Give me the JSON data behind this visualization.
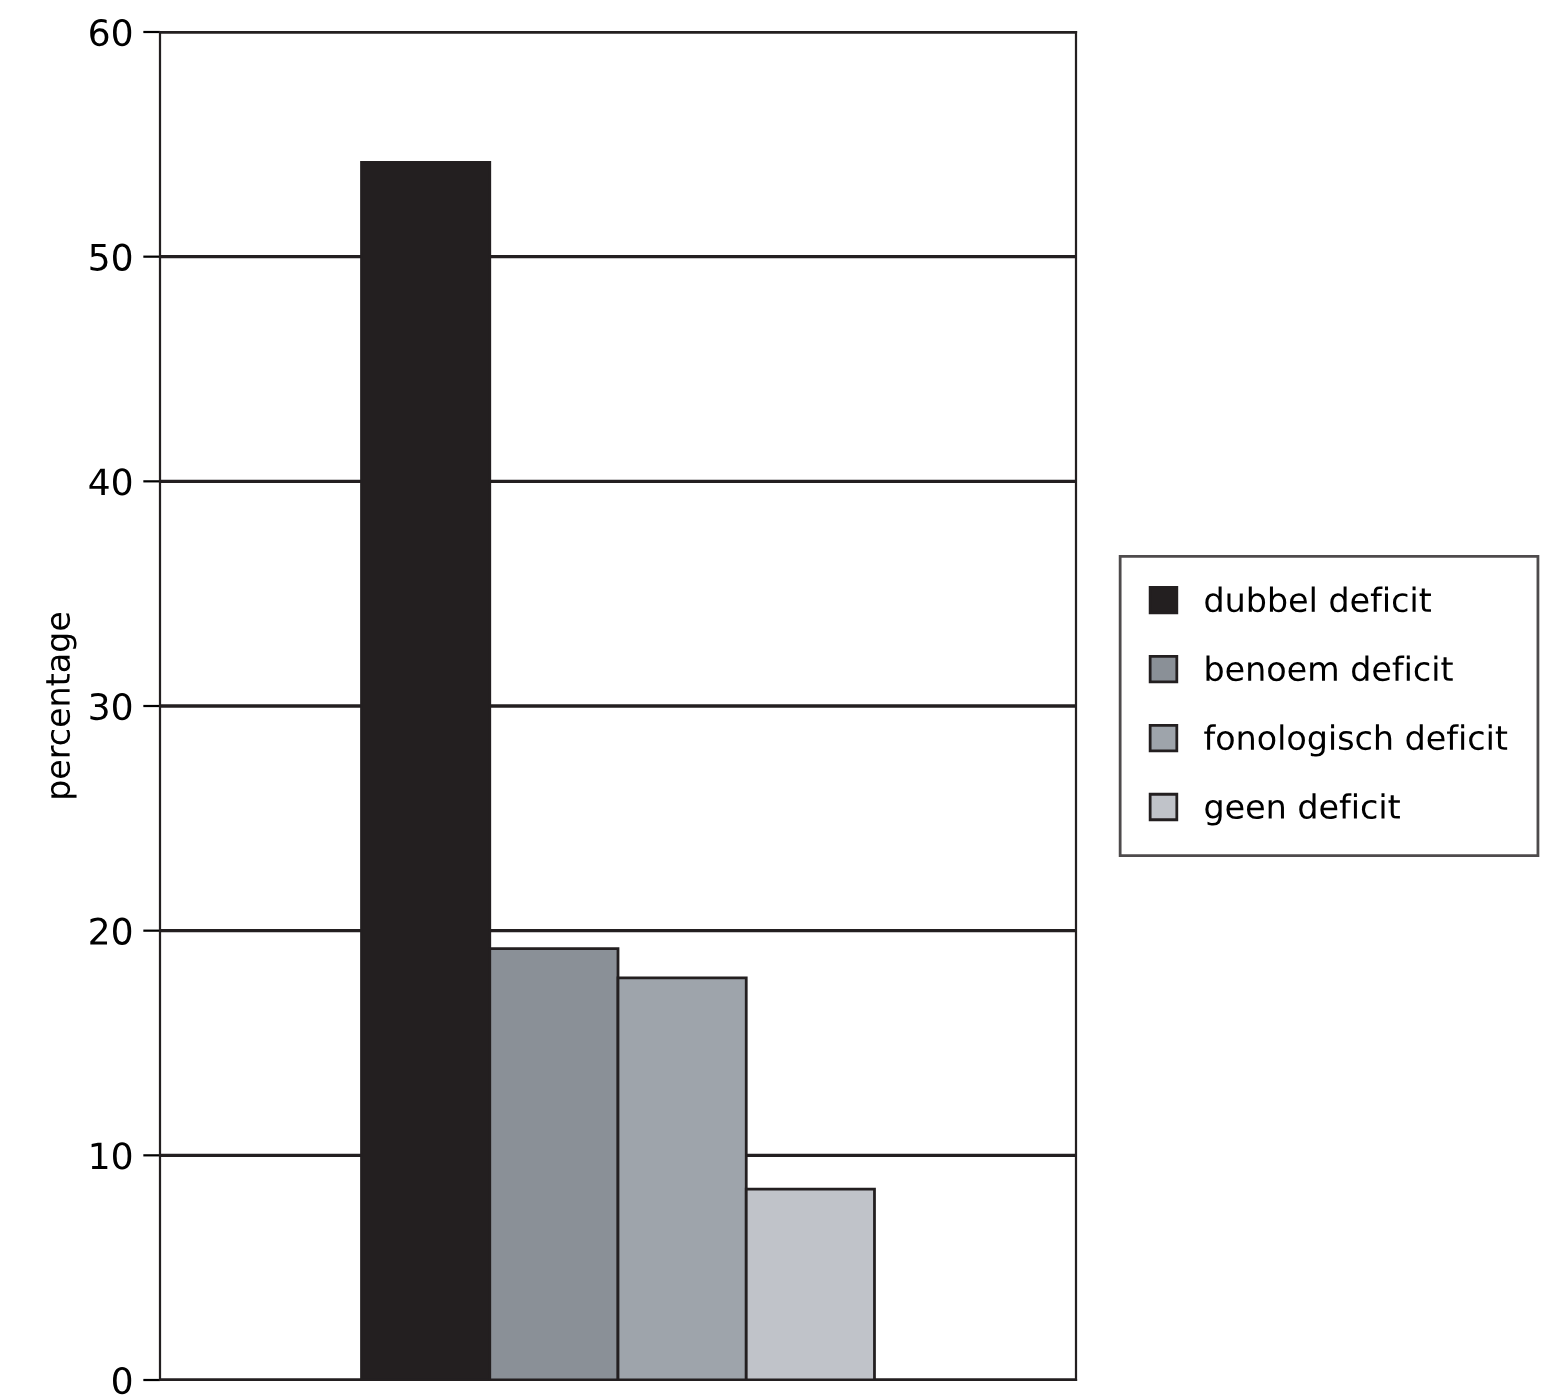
{
  "chart_data": {
    "type": "bar",
    "ylabel": "percentage",
    "categories": [
      null
    ],
    "series": [
      {
        "name": "dubbel deficit",
        "color": "#231f20",
        "values": [
          54.2
        ]
      },
      {
        "name": "benoem deficit",
        "color": "#8a9097",
        "values": [
          19.2
        ]
      },
      {
        "name": "fonologisch deficit",
        "color": "#9ea4ab",
        "values": [
          17.9
        ]
      },
      {
        "name": "geen deficit",
        "color": "#c0c3c9",
        "values": [
          8.5
        ]
      }
    ],
    "ylim": [
      0,
      60
    ],
    "yticks": [
      0,
      10,
      20,
      30,
      40,
      50,
      60
    ],
    "grid": "y",
    "legend": "right"
  }
}
